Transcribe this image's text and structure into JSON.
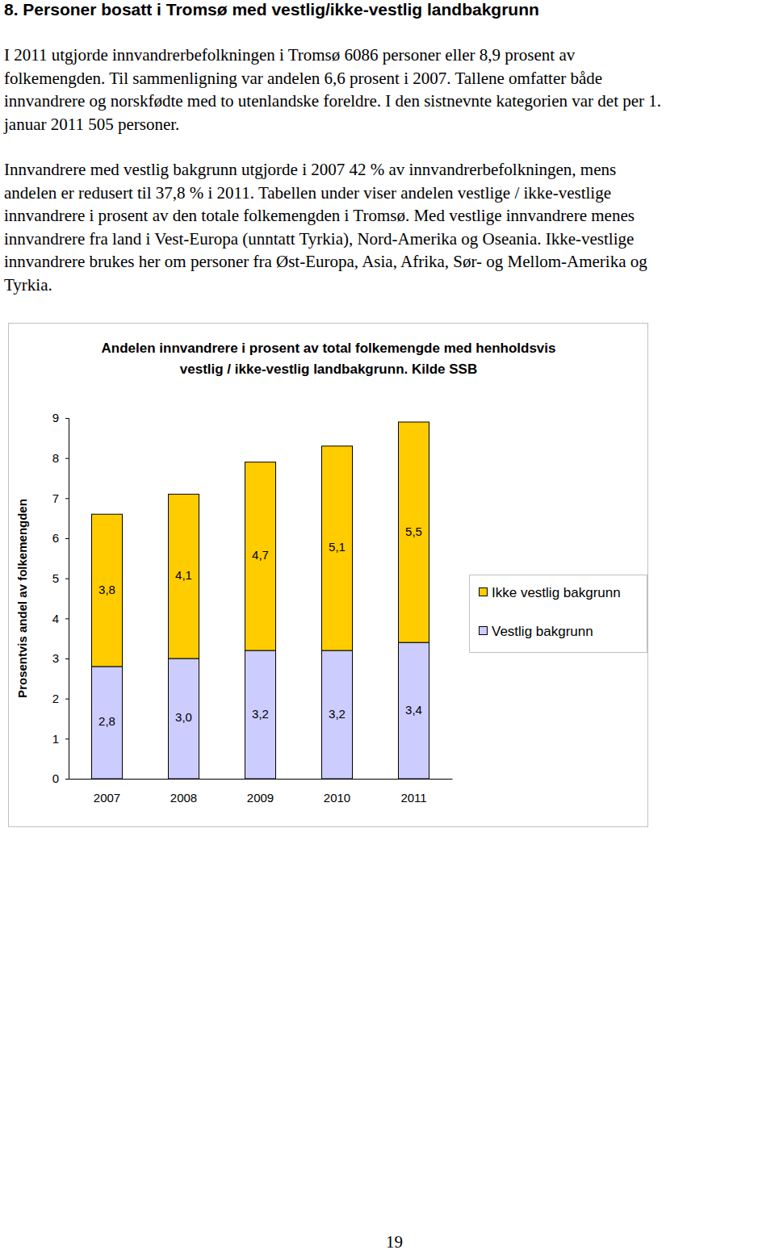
{
  "heading": "8. Personer bosatt i Tromsø med vestlig/ikke-vestlig landbakgrunn",
  "paragraphs": [
    [
      "I 2011 utgjorde innvandrerbefolkningen i Tromsø 6086 personer eller 8,9 prosent av",
      "folkemengden. Til sammenligning var andelen 6,6 prosent i 2007. Tallene omfatter både",
      "innvandrere og norskfødte med to utenlandske foreldre. I den sistnevnte kategorien var det per 1.",
      "januar 2011 505 personer."
    ],
    [
      "Innvandrere med vestlig bakgrunn utgjorde i 2007 42 % av innvandrerbefolkningen, mens",
      "andelen er redusert til 37,8 % i 2011. Tabellen under viser andelen vestlige / ikke-vestlige",
      "innvandrere i prosent av den totale folkemengden i Tromsø. Med vestlige innvandrere menes",
      "innvandrere fra land i Vest-Europa (unntatt Tyrkia), Nord-Amerika og Oseania. Ikke-vestlige",
      "innvandrere brukes her om personer fra Øst-Europa, Asia, Afrika, Sør- og Mellom-Amerika og",
      "Tyrkia."
    ]
  ],
  "chart_data": {
    "type": "bar",
    "stacked": true,
    "title": "Andelen innvandrere i prosent av total folkemengde med henholdsvis vestlig / ikke-vestlig landbakgrunn. Kilde SSB",
    "y_label": "Prosentvis andel av folkemengden",
    "categories": [
      "2007",
      "2008",
      "2009",
      "2010",
      "2011"
    ],
    "series": [
      {
        "name": "Vestlig bakgrunn",
        "color": "#ccccff",
        "values": [
          2.8,
          3.0,
          3.2,
          3.2,
          3.4
        ],
        "value_labels": [
          "2,8",
          "3,0",
          "3,2",
          "3,2",
          "3,4"
        ]
      },
      {
        "name": "Ikke vestlig bakgrunn",
        "color": "#ffcc00",
        "values": [
          3.8,
          4.1,
          4.7,
          5.1,
          5.5
        ],
        "value_labels": [
          "3,8",
          "4,1",
          "4,7",
          "5,1",
          "5,5"
        ]
      }
    ],
    "ylim": [
      0,
      9
    ],
    "yticks": [
      0,
      1,
      2,
      3,
      4,
      5,
      6,
      7,
      8,
      9
    ],
    "data_labels": true,
    "legend": "right",
    "grid": false
  },
  "page_number": "19"
}
